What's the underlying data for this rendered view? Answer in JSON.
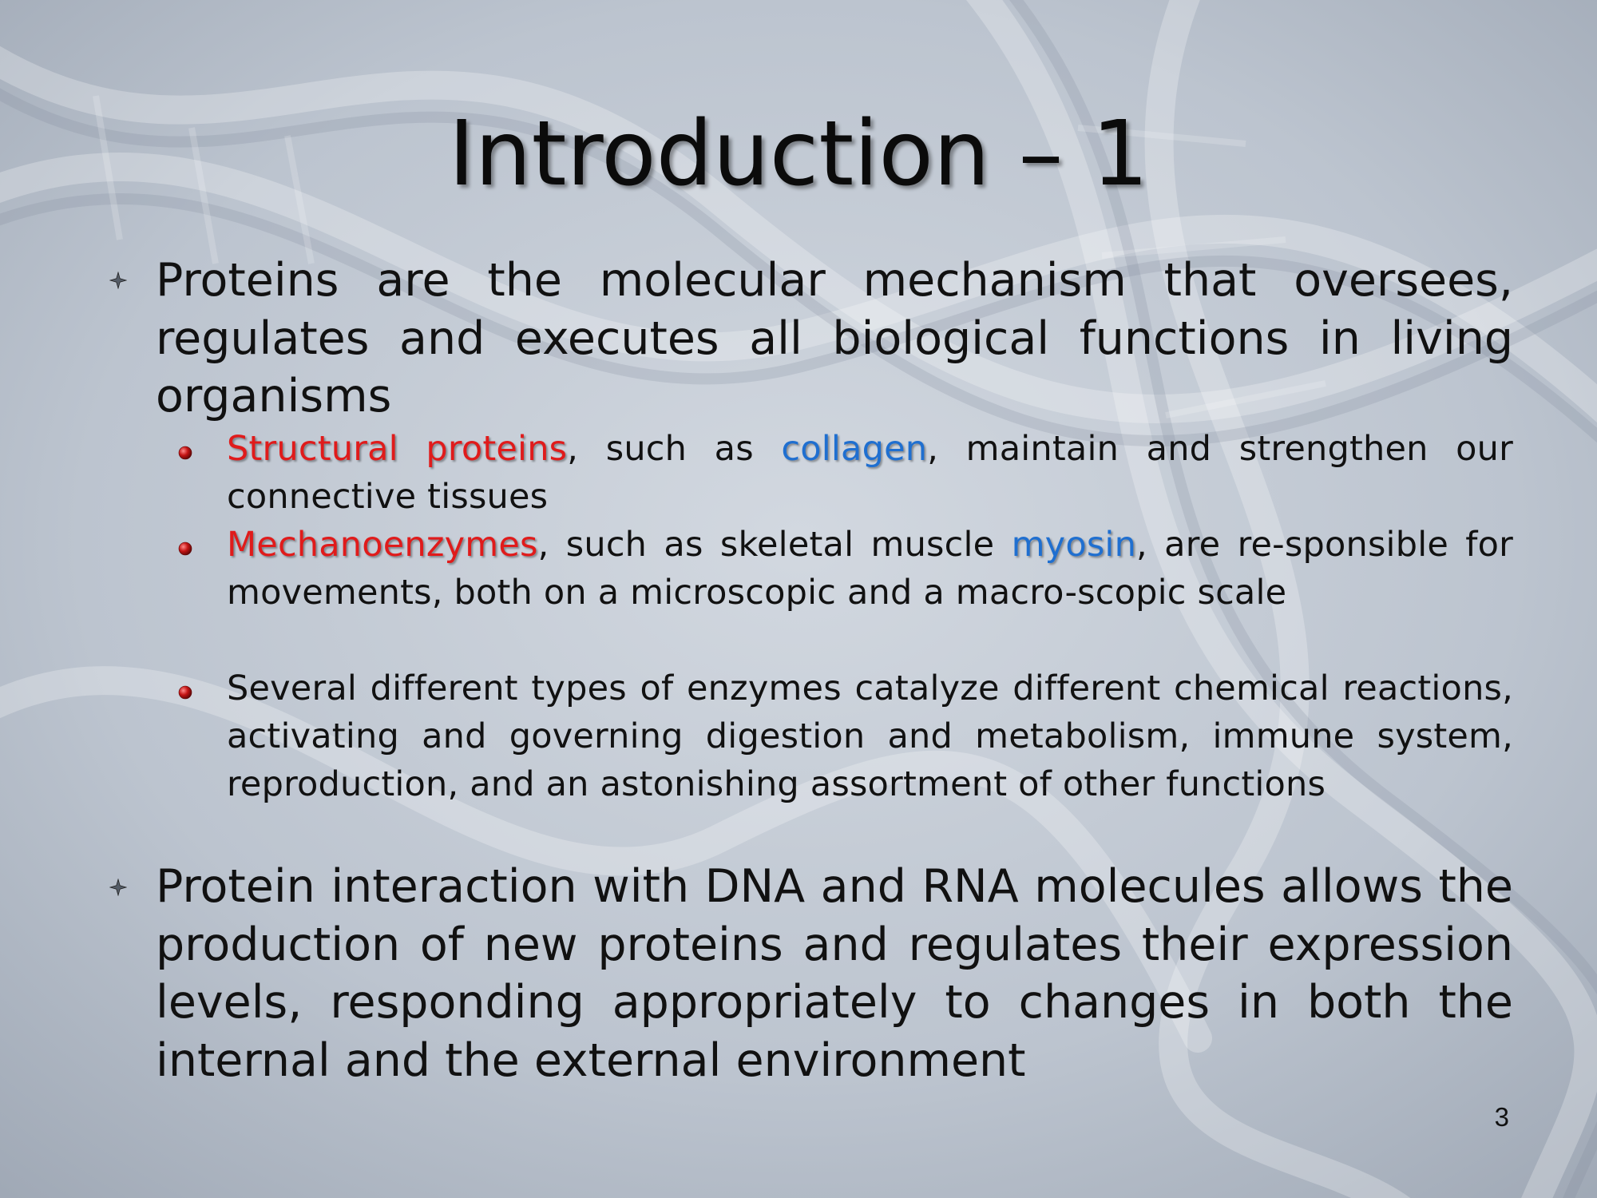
{
  "slide": {
    "title": "Introduction – 1",
    "page_number": "3",
    "bullets": [
      {
        "text": "Proteins are the molecular mechanism that oversees, regulates and executes all biological functions in living organisms",
        "sub_bullets": [
          {
            "term": "Structural proteins",
            "mid": ", such as ",
            "example": "collagen",
            "rest": ", maintain and strengthen our connective tissues"
          },
          {
            "term": "Mechanoenzymes",
            "mid": ", such as skeletal muscle ",
            "example": "myosin",
            "rest": ", are re-sponsible for movements, both on a microscopic and a macro-scopic scale"
          },
          {
            "text": "Several different types of enzymes catalyze different chemical reactions, activating and governing digestion and metabolism, immune system, reproduction, and an astonishing assortment of other functions"
          }
        ]
      },
      {
        "text": "Protein interaction with DNA and RNA molecules allows the production of new proteins and regulates their expression levels, responding appropriately to changes in both the internal and the external environment"
      }
    ]
  },
  "colors": {
    "highlight_term": "#e01b1b",
    "highlight_example": "#1f6fd0",
    "bullet_marker": "#b01818",
    "background": "#b9c1cc"
  },
  "icons": {
    "level1_marker": "four-point-star-icon",
    "level2_marker": "red-sphere-icon"
  }
}
